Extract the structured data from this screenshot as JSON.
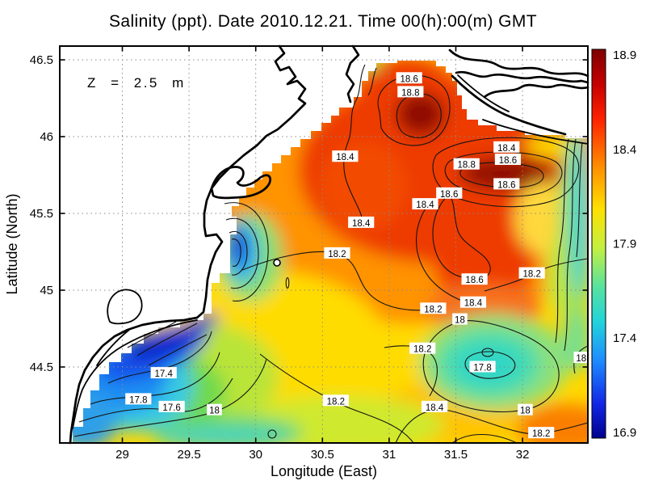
{
  "title": "Salinity (ppt). Date 2010.12.21. Time 00(h):00(m) GMT",
  "chart_data": {
    "type": "heatmap",
    "variable": "Salinity (ppt)",
    "date": "2010.12.21",
    "time": "00(h):00(m) GMT",
    "depth_label": "Z = 2.5 m",
    "xlabel": "Longitude (East)",
    "ylabel": "Latitude (North)",
    "xlim": [
      28.53,
      32.49
    ],
    "ylim": [
      44.0,
      46.59
    ],
    "xticks": [
      29,
      29.5,
      30,
      30.5,
      31,
      31.5,
      32
    ],
    "yticks": [
      44.5,
      45,
      45.5,
      46,
      46.5
    ],
    "grid": "dotted",
    "colorbar": {
      "min": 16.9,
      "max": 18.9,
      "ticks": [
        18.9,
        18.4,
        17.9,
        17.4,
        16.9
      ],
      "colormap": "jet"
    },
    "contour_labels": [
      {
        "label": "18.6",
        "value": 18.6,
        "lon": 31.15,
        "lat": 46.38
      },
      {
        "label": "18.8",
        "value": 18.8,
        "lon": 31.16,
        "lat": 46.29
      },
      {
        "label": "18.4",
        "value": 18.4,
        "lon": 30.67,
        "lat": 45.87
      },
      {
        "label": "18.4",
        "value": 18.4,
        "lon": 31.88,
        "lat": 45.93
      },
      {
        "label": "18.6",
        "value": 18.6,
        "lon": 31.89,
        "lat": 45.85
      },
      {
        "label": "18.8",
        "value": 18.8,
        "lon": 31.58,
        "lat": 45.82
      },
      {
        "label": "18.6",
        "value": 18.6,
        "lon": 31.88,
        "lat": 45.69
      },
      {
        "label": "18.6",
        "value": 18.6,
        "lon": 31.45,
        "lat": 45.63
      },
      {
        "label": "18.4",
        "value": 18.4,
        "lon": 31.27,
        "lat": 45.56
      },
      {
        "label": "18.4",
        "value": 18.4,
        "lon": 30.79,
        "lat": 45.44
      },
      {
        "label": "18.2",
        "value": 18.2,
        "lon": 30.61,
        "lat": 45.24
      },
      {
        "label": "18.6",
        "value": 18.6,
        "lon": 31.64,
        "lat": 45.07
      },
      {
        "label": "18.2",
        "value": 18.2,
        "lon": 32.07,
        "lat": 45.11
      },
      {
        "label": "18.4",
        "value": 18.4,
        "lon": 31.63,
        "lat": 44.92
      },
      {
        "label": "18.2",
        "value": 18.2,
        "lon": 31.33,
        "lat": 44.88
      },
      {
        "label": "18",
        "value": 18.0,
        "lon": 31.53,
        "lat": 44.81
      },
      {
        "label": "18.2",
        "value": 18.2,
        "lon": 31.25,
        "lat": 44.62
      },
      {
        "label": "17.8",
        "value": 17.8,
        "lon": 31.7,
        "lat": 44.5
      },
      {
        "label": "18",
        "value": 18.0,
        "lon": 32.44,
        "lat": 44.56
      },
      {
        "label": "18.4",
        "value": 18.4,
        "lon": 31.34,
        "lat": 44.24
      },
      {
        "label": "18",
        "value": 18.0,
        "lon": 32.02,
        "lat": 44.22
      },
      {
        "label": "18.2",
        "value": 18.2,
        "lon": 32.14,
        "lat": 44.07
      },
      {
        "label": "17.4",
        "value": 17.4,
        "lon": 29.31,
        "lat": 44.46
      },
      {
        "label": "17.8",
        "value": 17.8,
        "lon": 29.12,
        "lat": 44.29
      },
      {
        "label": "17.6",
        "value": 17.6,
        "lon": 29.37,
        "lat": 44.24
      },
      {
        "label": "18",
        "value": 18.0,
        "lon": 29.69,
        "lat": 44.22
      },
      {
        "label": "18.2",
        "value": 18.2,
        "lon": 30.6,
        "lat": 44.28
      }
    ]
  }
}
